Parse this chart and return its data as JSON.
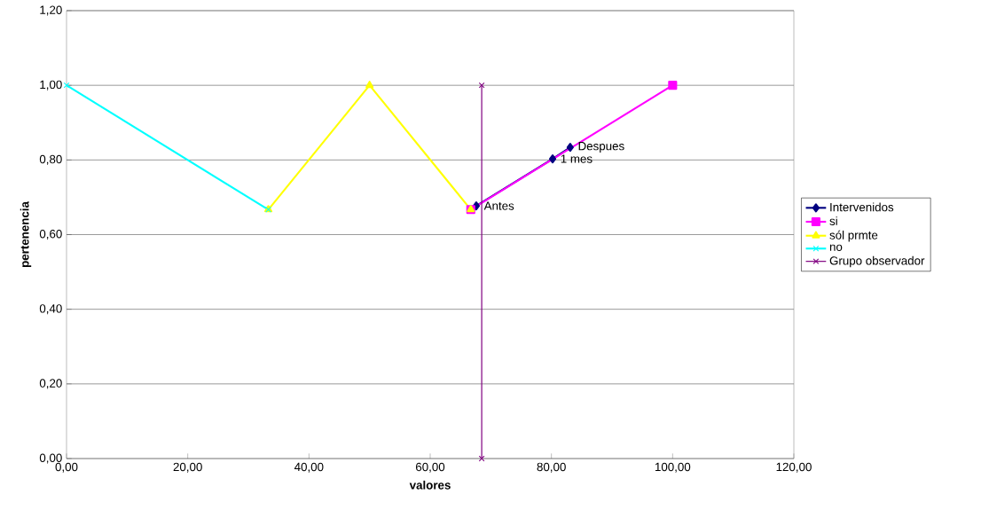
{
  "chart_data": {
    "type": "line",
    "xlabel": "valores",
    "ylabel": "pertenencia",
    "xlim": [
      0,
      120
    ],
    "ylim": [
      0,
      1.2
    ],
    "xticks": [
      {
        "value": 0,
        "label": "0,00"
      },
      {
        "value": 20,
        "label": "20,00"
      },
      {
        "value": 40,
        "label": "40,00"
      },
      {
        "value": 60,
        "label": "60,00"
      },
      {
        "value": 80,
        "label": "80,00"
      },
      {
        "value": 100,
        "label": "100,00"
      },
      {
        "value": 120,
        "label": "120,00"
      }
    ],
    "yticks": [
      {
        "value": 0,
        "label": "0,00"
      },
      {
        "value": 0.2,
        "label": "0,20"
      },
      {
        "value": 0.4,
        "label": "0,40"
      },
      {
        "value": 0.6,
        "label": "0,60"
      },
      {
        "value": 0.8,
        "label": "0,80"
      },
      {
        "value": 1.0,
        "label": "1,00"
      },
      {
        "value": 1.2,
        "label": "1,20"
      }
    ],
    "grid": "y",
    "legend": "right",
    "series": [
      {
        "name": "Intervenidos",
        "color": "#000080",
        "marker": "diamond",
        "x": [
          67.6,
          80.2,
          83.1
        ],
        "values": [
          0.677,
          0.803,
          0.834
        ]
      },
      {
        "name": "si",
        "color": "#ff00ff",
        "marker": "square",
        "x": [
          66.7,
          100
        ],
        "values": [
          0.667,
          1.0
        ]
      },
      {
        "name": "sól prmte",
        "color": "#ffff00",
        "marker": "triangle",
        "x": [
          33.3,
          50,
          66.7
        ],
        "values": [
          0.667,
          1.0,
          0.667
        ]
      },
      {
        "name": "no",
        "color": "#00ffff",
        "marker": "cross",
        "x": [
          0,
          33.3
        ],
        "values": [
          1.0,
          0.667
        ]
      },
      {
        "name": "Grupo observador",
        "color": "#800080",
        "marker": "cross",
        "x": [
          68.5,
          68.5
        ],
        "values": [
          0,
          1.0
        ]
      }
    ],
    "annotations": [
      {
        "text": "Antes",
        "x": 67.6,
        "y": 0.677
      },
      {
        "text": "1 mes",
        "x": 80.2,
        "y": 0.803
      },
      {
        "text": "Despues",
        "x": 83.1,
        "y": 0.834
      }
    ]
  }
}
